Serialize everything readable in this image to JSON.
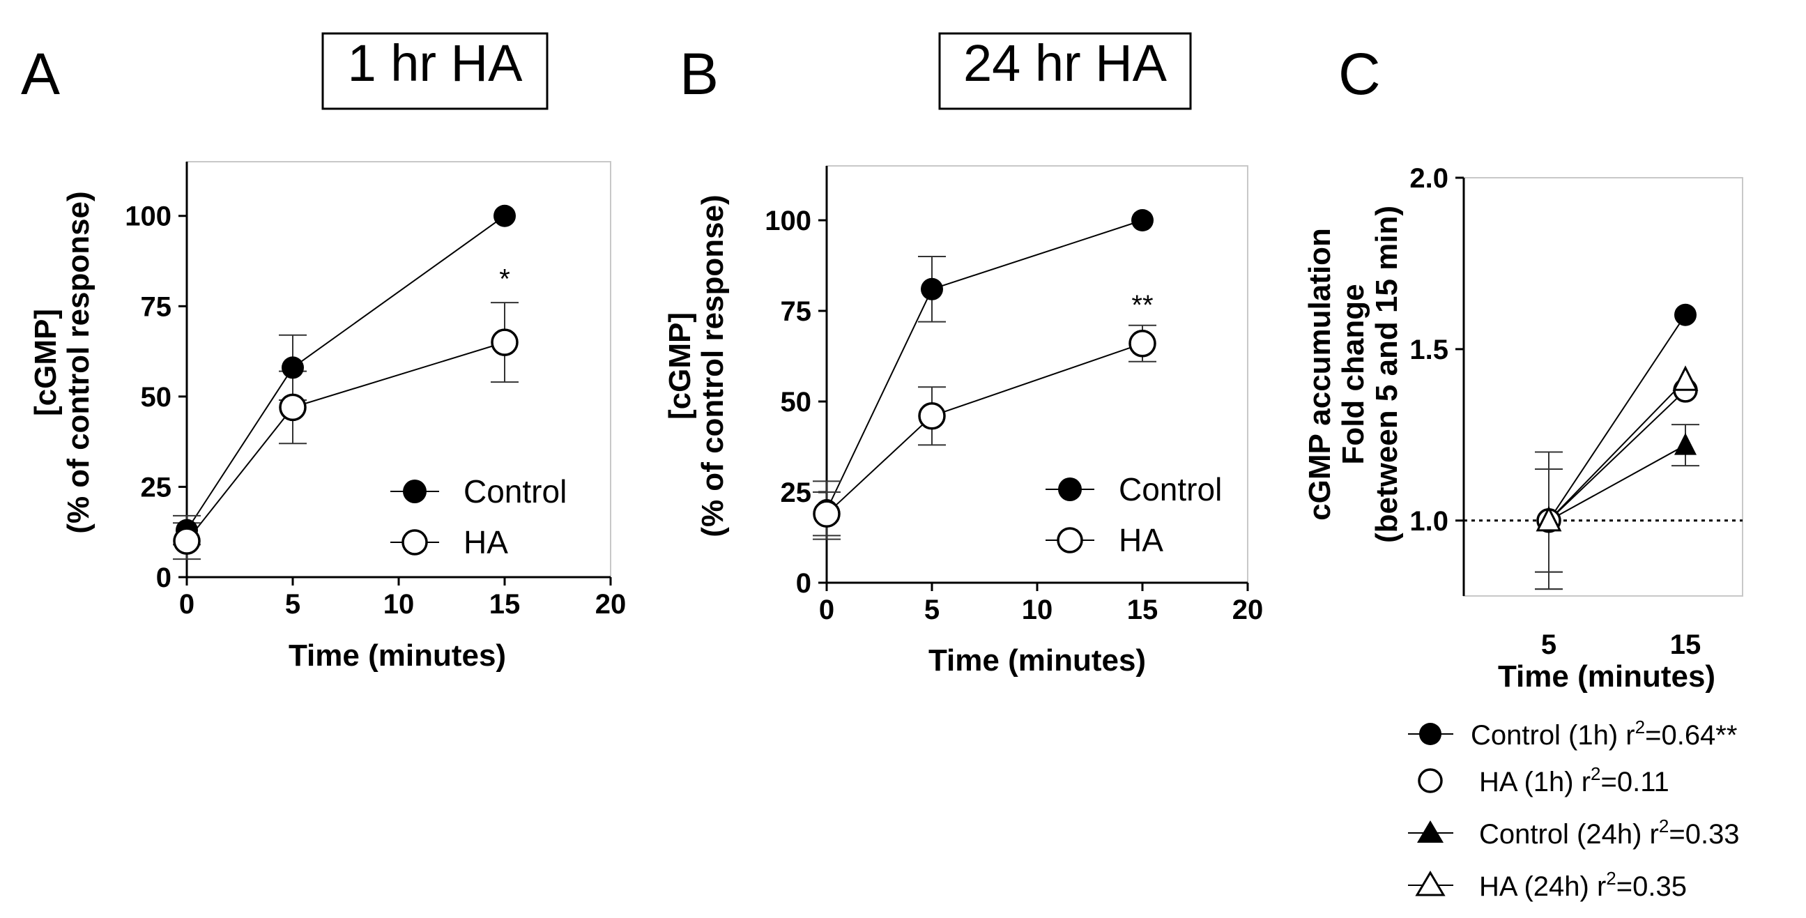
{
  "chart_data": [
    {
      "panel": "A",
      "type": "line",
      "title": "1 hr HA",
      "xlabel": "Time (minutes)",
      "ylabel_line1": "[cGMP]",
      "ylabel_line2": "(% of control response)",
      "xlim": [
        0,
        20
      ],
      "ylim": [
        0,
        115
      ],
      "xticks": [
        0,
        5,
        10,
        15,
        20
      ],
      "yticks": [
        0,
        25,
        50,
        75,
        100
      ],
      "grid": false,
      "legend_position": "bottom-right",
      "series": [
        {
          "name": "Control",
          "marker": "filled-circle",
          "x": [
            0,
            5,
            15
          ],
          "y": [
            13,
            58,
            100
          ],
          "err": [
            4,
            9,
            0
          ]
        },
        {
          "name": "HA",
          "marker": "open-circle",
          "x": [
            0,
            5,
            15
          ],
          "y": [
            10,
            47,
            65
          ],
          "err": [
            5,
            10,
            11
          ]
        }
      ],
      "annotations": [
        {
          "text": "*",
          "x": 15,
          "y": 80
        }
      ]
    },
    {
      "panel": "B",
      "type": "line",
      "title": "24 hr HA",
      "xlabel": "Time (minutes)",
      "ylabel_line1": "[cGMP]",
      "ylabel_line2": "(% of control response)",
      "xlim": [
        0,
        20
      ],
      "ylim": [
        0,
        115
      ],
      "xticks": [
        0,
        5,
        10,
        15,
        20
      ],
      "yticks": [
        0,
        25,
        50,
        75,
        100
      ],
      "grid": false,
      "legend_position": "bottom-right",
      "series": [
        {
          "name": "Control",
          "marker": "filled-circle",
          "x": [
            0,
            5,
            15
          ],
          "y": [
            20,
            81,
            100
          ],
          "err": [
            8,
            9,
            0
          ]
        },
        {
          "name": "HA",
          "marker": "open-circle",
          "x": [
            0,
            5,
            15
          ],
          "y": [
            19,
            46,
            66
          ],
          "err": [
            6,
            8,
            5
          ]
        }
      ],
      "annotations": [
        {
          "text": "**",
          "x": 15,
          "y": 74
        }
      ]
    },
    {
      "panel": "C",
      "type": "line",
      "xlabel": "Time (minutes)",
      "ylabel_line1": "cGMP accumulation",
      "ylabel_line2": "Fold change",
      "ylabel_line3": "(between 5 and 15 min)",
      "categories": [
        "5",
        "15"
      ],
      "ylim": [
        0.78,
        2.0
      ],
      "yticks": [
        "1.0",
        "1.5",
        "2.0"
      ],
      "reference_line": 1.0,
      "grid": false,
      "legend_position": "below",
      "series": [
        {
          "name": "Control (1h) r",
          "r2": "=0.64**",
          "marker": "filled-circle",
          "y": [
            1.0,
            1.6
          ],
          "err": [
            0.2,
            0
          ]
        },
        {
          "name": "HA (1h) r",
          "r2": "=0.11",
          "marker": "open-circle",
          "y": [
            1.0,
            1.38
          ],
          "err": [
            0.15,
            0
          ]
        },
        {
          "name": "Control (24h) r",
          "r2": "=0.33",
          "marker": "filled-triangle",
          "y": [
            1.0,
            1.22
          ],
          "err": [
            0.15,
            0.06
          ]
        },
        {
          "name": "HA (24h) r",
          "r2": "=0.35",
          "marker": "open-triangle",
          "y": [
            1.0,
            1.41
          ],
          "err": [
            0.2,
            0
          ]
        }
      ]
    }
  ]
}
